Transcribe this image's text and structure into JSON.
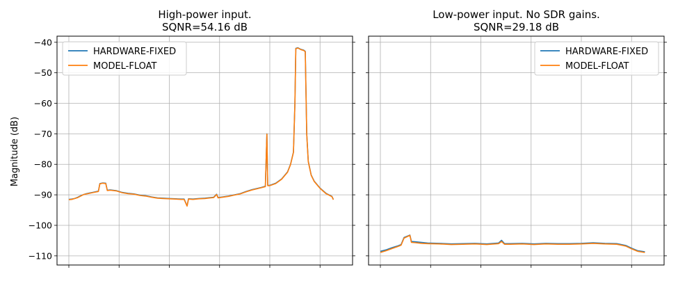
{
  "figure": {
    "ylabel": "Magnitude (dB)"
  },
  "chart_data": [
    {
      "type": "line",
      "title_line1": "High-power input.",
      "title_line2": "SQNR=54.16 dB",
      "xlabel": "",
      "ylabel": "Magnitude (dB)",
      "xlim": [
        0,
        1
      ],
      "ylim": [
        -113,
        -38
      ],
      "yticks": [
        -40,
        -50,
        -60,
        -70,
        -80,
        -90,
        -100,
        -110
      ],
      "xticks": [
        0.04,
        0.21,
        0.38,
        0.55,
        0.72,
        0.89
      ],
      "grid": true,
      "legend": "top-left",
      "series": [
        {
          "name": "HARDWARE-FIXED",
          "color": "#1f77b4",
          "points": [
            [
              0.04,
              -91.5
            ],
            [
              0.05,
              -91.4
            ],
            [
              0.06,
              -91.2
            ],
            [
              0.07,
              -90.8
            ],
            [
              0.08,
              -90.3
            ],
            [
              0.09,
              -89.9
            ],
            [
              0.1,
              -89.6
            ],
            [
              0.12,
              -89.2
            ],
            [
              0.14,
              -88.8
            ],
            [
              0.145,
              -86.3
            ],
            [
              0.155,
              -86.1
            ],
            [
              0.165,
              -86.2
            ],
            [
              0.17,
              -88.5
            ],
            [
              0.18,
              -88.4
            ],
            [
              0.2,
              -88.6
            ],
            [
              0.22,
              -89.2
            ],
            [
              0.24,
              -89.5
            ],
            [
              0.26,
              -89.7
            ],
            [
              0.28,
              -90.1
            ],
            [
              0.3,
              -90.3
            ],
            [
              0.32,
              -90.7
            ],
            [
              0.34,
              -91.0
            ],
            [
              0.36,
              -91.1
            ],
            [
              0.38,
              -91.2
            ],
            [
              0.4,
              -91.3
            ],
            [
              0.42,
              -91.4
            ],
            [
              0.43,
              -91.4
            ],
            [
              0.44,
              -93.6
            ],
            [
              0.445,
              -91.3
            ],
            [
              0.46,
              -91.4
            ],
            [
              0.48,
              -91.2
            ],
            [
              0.5,
              -91.1
            ],
            [
              0.52,
              -90.9
            ],
            [
              0.53,
              -90.8
            ],
            [
              0.54,
              -89.8
            ],
            [
              0.545,
              -90.9
            ],
            [
              0.56,
              -90.7
            ],
            [
              0.58,
              -90.4
            ],
            [
              0.6,
              -90.0
            ],
            [
              0.62,
              -89.6
            ],
            [
              0.64,
              -88.9
            ],
            [
              0.66,
              -88.3
            ],
            [
              0.69,
              -87.6
            ],
            [
              0.705,
              -87.2
            ],
            [
              0.71,
              -70.0
            ],
            [
              0.713,
              -86.9
            ],
            [
              0.72,
              -86.9
            ],
            [
              0.74,
              -86.2
            ],
            [
              0.76,
              -84.8
            ],
            [
              0.78,
              -82.5
            ],
            [
              0.79,
              -80.0
            ],
            [
              0.8,
              -76.0
            ],
            [
              0.805,
              -60.0
            ],
            [
              0.808,
              -42.0
            ],
            [
              0.815,
              -41.8
            ],
            [
              0.825,
              -42.3
            ],
            [
              0.835,
              -42.6
            ],
            [
              0.84,
              -43.0
            ],
            [
              0.845,
              -70.0
            ],
            [
              0.85,
              -79.0
            ],
            [
              0.86,
              -83.5
            ],
            [
              0.87,
              -85.5
            ],
            [
              0.89,
              -87.8
            ],
            [
              0.91,
              -89.5
            ],
            [
              0.93,
              -90.5
            ],
            [
              0.935,
              -91.5
            ]
          ]
        },
        {
          "name": "MODEL-FLOAT",
          "color": "#ff7f0e",
          "points": [
            [
              0.04,
              -91.6
            ],
            [
              0.05,
              -91.5
            ],
            [
              0.06,
              -91.2
            ],
            [
              0.07,
              -90.9
            ],
            [
              0.08,
              -90.4
            ],
            [
              0.09,
              -89.9
            ],
            [
              0.1,
              -89.7
            ],
            [
              0.12,
              -89.3
            ],
            [
              0.14,
              -88.9
            ],
            [
              0.145,
              -86.4
            ],
            [
              0.155,
              -86.2
            ],
            [
              0.165,
              -86.3
            ],
            [
              0.17,
              -88.6
            ],
            [
              0.18,
              -88.5
            ],
            [
              0.2,
              -88.7
            ],
            [
              0.22,
              -89.3
            ],
            [
              0.24,
              -89.6
            ],
            [
              0.26,
              -89.8
            ],
            [
              0.28,
              -90.2
            ],
            [
              0.3,
              -90.4
            ],
            [
              0.32,
              -90.8
            ],
            [
              0.34,
              -91.1
            ],
            [
              0.36,
              -91.2
            ],
            [
              0.38,
              -91.3
            ],
            [
              0.4,
              -91.4
            ],
            [
              0.42,
              -91.5
            ],
            [
              0.43,
              -91.5
            ],
            [
              0.44,
              -93.7
            ],
            [
              0.445,
              -91.4
            ],
            [
              0.46,
              -91.5
            ],
            [
              0.48,
              -91.3
            ],
            [
              0.5,
              -91.2
            ],
            [
              0.52,
              -91.0
            ],
            [
              0.53,
              -90.9
            ],
            [
              0.54,
              -89.9
            ],
            [
              0.545,
              -91.0
            ],
            [
              0.56,
              -90.8
            ],
            [
              0.58,
              -90.5
            ],
            [
              0.6,
              -90.1
            ],
            [
              0.62,
              -89.7
            ],
            [
              0.64,
              -89.0
            ],
            [
              0.66,
              -88.4
            ],
            [
              0.69,
              -87.7
            ],
            [
              0.705,
              -87.3
            ],
            [
              0.71,
              -70.1
            ],
            [
              0.713,
              -87.0
            ],
            [
              0.72,
              -87.0
            ],
            [
              0.74,
              -86.3
            ],
            [
              0.76,
              -84.9
            ],
            [
              0.78,
              -82.6
            ],
            [
              0.79,
              -80.1
            ],
            [
              0.8,
              -76.1
            ],
            [
              0.805,
              -60.1
            ],
            [
              0.808,
              -42.1
            ],
            [
              0.815,
              -41.9
            ],
            [
              0.825,
              -42.4
            ],
            [
              0.835,
              -42.7
            ],
            [
              0.84,
              -43.1
            ],
            [
              0.845,
              -70.1
            ],
            [
              0.85,
              -79.1
            ],
            [
              0.86,
              -83.6
            ],
            [
              0.87,
              -85.6
            ],
            [
              0.89,
              -87.9
            ],
            [
              0.91,
              -89.6
            ],
            [
              0.93,
              -90.6
            ],
            [
              0.935,
              -91.6
            ]
          ]
        }
      ]
    },
    {
      "type": "line",
      "title_line1": "Low-power input. No SDR gains.",
      "title_line2": "SQNR=29.18 dB",
      "xlabel": "",
      "ylabel": "",
      "xlim": [
        0,
        1
      ],
      "ylim": [
        -113,
        -38
      ],
      "yticks": [
        -40,
        -50,
        -60,
        -70,
        -80,
        -90,
        -100,
        -110
      ],
      "xticks": [
        0.04,
        0.21,
        0.38,
        0.55,
        0.72,
        0.89
      ],
      "grid": true,
      "legend": "top-right",
      "series": [
        {
          "name": "HARDWARE-FIXED",
          "color": "#1f77b4",
          "points": [
            [
              0.04,
              -108.5
            ],
            [
              0.06,
              -108.0
            ],
            [
              0.08,
              -107.3
            ],
            [
              0.1,
              -106.7
            ],
            [
              0.11,
              -106.3
            ],
            [
              0.12,
              -104.0
            ],
            [
              0.14,
              -103.2
            ],
            [
              0.145,
              -105.3
            ],
            [
              0.16,
              -105.4
            ],
            [
              0.18,
              -105.6
            ],
            [
              0.2,
              -105.8
            ],
            [
              0.24,
              -105.9
            ],
            [
              0.28,
              -106.1
            ],
            [
              0.32,
              -106.0
            ],
            [
              0.36,
              -105.9
            ],
            [
              0.4,
              -106.1
            ],
            [
              0.44,
              -105.8
            ],
            [
              0.45,
              -104.9
            ],
            [
              0.46,
              -106.0
            ],
            [
              0.48,
              -106.0
            ],
            [
              0.52,
              -105.9
            ],
            [
              0.56,
              -106.1
            ],
            [
              0.6,
              -105.9
            ],
            [
              0.64,
              -106.0
            ],
            [
              0.68,
              -106.0
            ],
            [
              0.72,
              -105.9
            ],
            [
              0.76,
              -105.7
            ],
            [
              0.8,
              -105.9
            ],
            [
              0.84,
              -106.0
            ],
            [
              0.87,
              -106.6
            ],
            [
              0.89,
              -107.5
            ],
            [
              0.91,
              -108.3
            ],
            [
              0.935,
              -108.7
            ]
          ]
        },
        {
          "name": "MODEL-FLOAT",
          "color": "#ff7f0e",
          "points": [
            [
              0.04,
              -108.9
            ],
            [
              0.06,
              -108.3
            ],
            [
              0.08,
              -107.6
            ],
            [
              0.1,
              -106.9
            ],
            [
              0.11,
              -106.5
            ],
            [
              0.12,
              -104.2
            ],
            [
              0.14,
              -103.3
            ],
            [
              0.145,
              -105.6
            ],
            [
              0.16,
              -105.7
            ],
            [
              0.18,
              -105.9
            ],
            [
              0.2,
              -106.0
            ],
            [
              0.24,
              -106.1
            ],
            [
              0.28,
              -106.3
            ],
            [
              0.32,
              -106.2
            ],
            [
              0.36,
              -106.1
            ],
            [
              0.4,
              -106.3
            ],
            [
              0.44,
              -106.0
            ],
            [
              0.45,
              -105.3
            ],
            [
              0.46,
              -106.2
            ],
            [
              0.48,
              -106.2
            ],
            [
              0.52,
              -106.1
            ],
            [
              0.56,
              -106.3
            ],
            [
              0.6,
              -106.1
            ],
            [
              0.64,
              -106.2
            ],
            [
              0.68,
              -106.2
            ],
            [
              0.72,
              -106.1
            ],
            [
              0.76,
              -105.9
            ],
            [
              0.8,
              -106.1
            ],
            [
              0.84,
              -106.2
            ],
            [
              0.87,
              -106.8
            ],
            [
              0.89,
              -107.7
            ],
            [
              0.91,
              -108.5
            ],
            [
              0.935,
              -108.9
            ]
          ]
        }
      ]
    }
  ]
}
